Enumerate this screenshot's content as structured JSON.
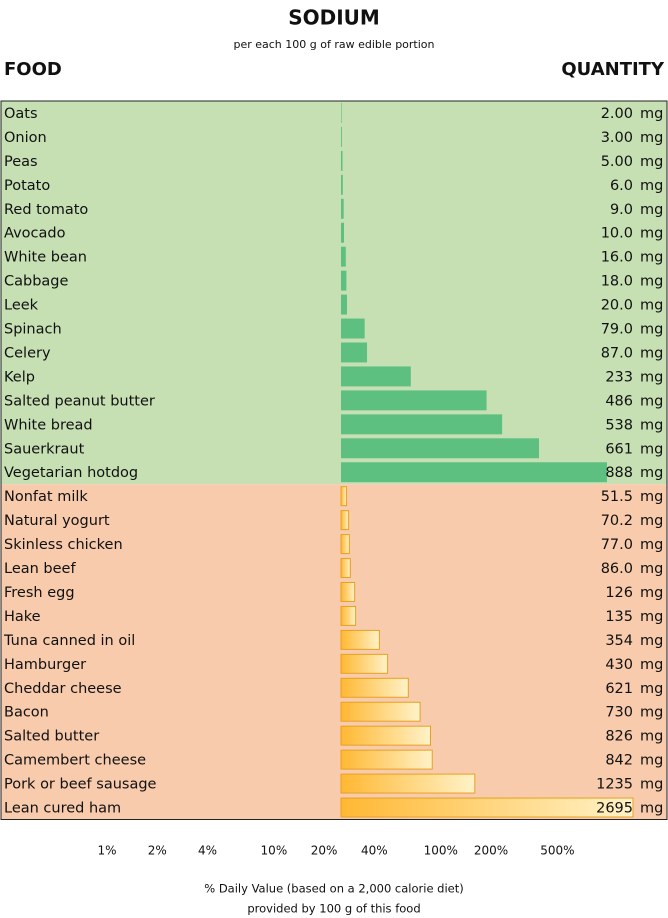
{
  "chart_data": {
    "type": "bar",
    "title": "SODIUM",
    "subtitle": "per each 100 g of raw edible portion",
    "header_left": "FOOD",
    "header_right": "QUANTITY",
    "unit": "mg",
    "groups": [
      {
        "background": "#c6e0b4",
        "color": "#5ec080",
        "categories": [
          "Oats",
          "Onion",
          "Peas",
          "Potato",
          "Red tomato",
          "Avocado",
          "White bean",
          "Cabbage",
          "Leek",
          "Spinach",
          "Celery",
          "Kelp",
          "Salted peanut butter",
          "White bread",
          "Sauerkraut",
          "Vegetarian hotdog"
        ],
        "values": [
          2,
          3,
          5,
          6,
          9,
          10,
          16,
          18,
          20,
          79,
          87,
          233,
          486,
          538,
          661,
          888
        ],
        "value_labels": [
          "2.00",
          "3.00",
          "5.00",
          "6.0",
          "9.0",
          "10.0",
          "16.0",
          "18.0",
          "20.0",
          "79.0",
          "87.0",
          "233",
          "486",
          "538",
          "661",
          "888"
        ]
      },
      {
        "background": "#f8cbad",
        "color": "#ffb833",
        "categories": [
          "Nonfat milk",
          "Natural yogurt",
          "Skinless chicken",
          "Lean beef",
          "Fresh egg",
          "Hake",
          "Tuna canned in oil",
          "Hamburger",
          "Cheddar cheese",
          "Bacon",
          "Salted butter",
          "Camembert cheese",
          "Pork or beef sausage",
          "Lean cured ham"
        ],
        "values": [
          51.5,
          70.2,
          77,
          86,
          126,
          135,
          354,
          430,
          621,
          730,
          826,
          842,
          1235,
          2695
        ],
        "value_labels": [
          "51.5",
          "70.2",
          "77.0",
          "86.0",
          "126",
          "135",
          "354",
          "430",
          "621",
          "730",
          "826",
          "842",
          "1235",
          "2695"
        ]
      }
    ],
    "log_x": true,
    "xlim": [
      0.6,
      900
    ],
    "xticks": [
      {
        "value": 1,
        "label": "1%"
      },
      {
        "value": 2,
        "label": "2%"
      },
      {
        "value": 4,
        "label": "4%"
      },
      {
        "value": 10,
        "label": "10%"
      },
      {
        "value": 20,
        "label": "20%"
      },
      {
        "value": 40,
        "label": "40%"
      },
      {
        "value": 100,
        "label": "100%"
      },
      {
        "value": 200,
        "label": "200%"
      },
      {
        "value": 500,
        "label": "500%"
      }
    ],
    "footnote": [
      "% Daily Value (based on a 2,000 calorie diet)",
      "provided by 100 g of this food"
    ]
  }
}
